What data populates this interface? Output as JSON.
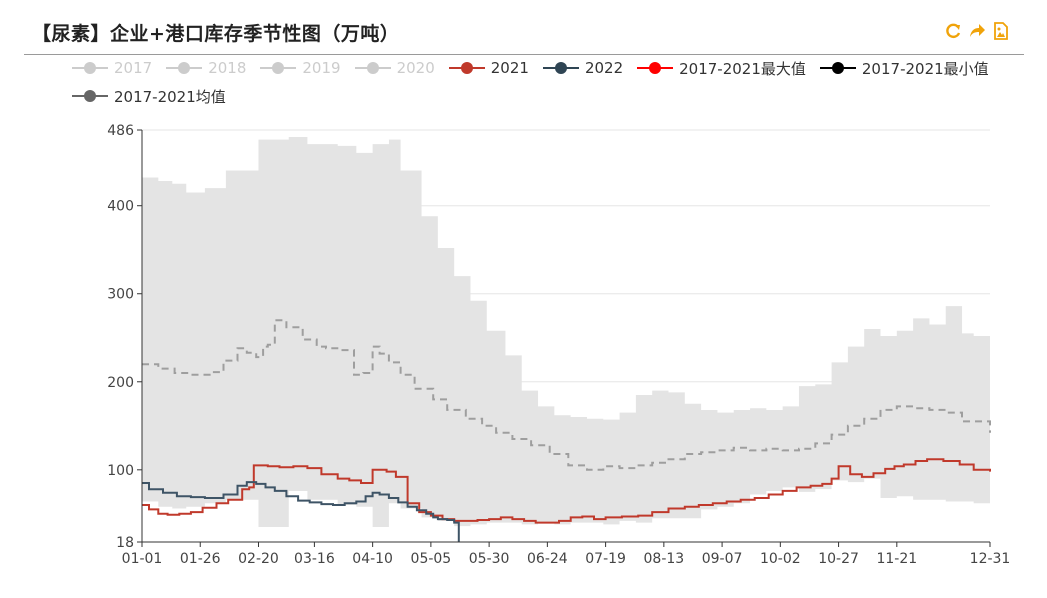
{
  "title": "【尿素】企业+港口库存季节性图（万吨）",
  "tools": [
    "refresh-icon",
    "share-icon",
    "save-image-icon"
  ],
  "colors": {
    "accent": "#f0a30a",
    "band": "#e4e4e4",
    "s2021": "#c0392b",
    "s2022": "#3e5466",
    "max": "#ff0000",
    "min": "#000000",
    "avg": "#9e9e9e",
    "legendOff": "#cccccc"
  },
  "legend": [
    {
      "label": "2017",
      "color": "#cccccc",
      "active": false
    },
    {
      "label": "2018",
      "color": "#cccccc",
      "active": false
    },
    {
      "label": "2019",
      "color": "#cccccc",
      "active": false
    },
    {
      "label": "2020",
      "color": "#cccccc",
      "active": false
    },
    {
      "label": "2021",
      "color": "#c0392b",
      "active": true
    },
    {
      "label": "2022",
      "color": "#2f4554",
      "active": true
    },
    {
      "label": "2017-2021最大值",
      "color": "#ff0000",
      "active": true
    },
    {
      "label": "2017-2021最小值",
      "color": "#000000",
      "active": true
    },
    {
      "label": "2017-2021均值",
      "color": "#666666",
      "active": true
    }
  ],
  "chart_data": {
    "type": "line",
    "title": "【尿素】企业+港口库存季节性图（万吨）",
    "xlabel": "",
    "ylabel": "",
    "ylim": [
      18,
      486
    ],
    "yticks": [
      18,
      100,
      200,
      300,
      400,
      486
    ],
    "xlim": [
      1,
      365
    ],
    "xticks": [
      {
        "day": 1,
        "label": "01-01"
      },
      {
        "day": 26,
        "label": "01-26"
      },
      {
        "day": 51,
        "label": "02-20"
      },
      {
        "day": 75,
        "label": "03-16"
      },
      {
        "day": 100,
        "label": "04-10"
      },
      {
        "day": 125,
        "label": "05-05"
      },
      {
        "day": 150,
        "label": "05-30"
      },
      {
        "day": 175,
        "label": "06-24"
      },
      {
        "day": 200,
        "label": "07-19"
      },
      {
        "day": 225,
        "label": "08-13"
      },
      {
        "day": 250,
        "label": "09-07"
      },
      {
        "day": 275,
        "label": "10-02"
      },
      {
        "day": 300,
        "label": "10-27"
      },
      {
        "day": 325,
        "label": "11-21"
      },
      {
        "day": 365,
        "label": "12-31"
      }
    ],
    "grid": true,
    "legend_position": "top",
    "band": {
      "name_max": "2017-2021最大值",
      "name_min": "2017-2021最小值",
      "x": [
        1,
        8,
        14,
        20,
        28,
        37,
        51,
        64,
        72,
        85,
        93,
        100,
        107,
        112,
        121,
        128,
        135,
        142,
        149,
        157,
        164,
        171,
        178,
        185,
        192,
        199,
        206,
        213,
        220,
        227,
        234,
        241,
        248,
        255,
        262,
        269,
        276,
        283,
        290,
        297,
        304,
        311,
        318,
        325,
        332,
        339,
        346,
        353,
        358,
        365
      ],
      "max": [
        432,
        428,
        425,
        415,
        420,
        440,
        475,
        478,
        470,
        468,
        460,
        470,
        475,
        440,
        388,
        352,
        320,
        292,
        258,
        230,
        190,
        172,
        162,
        160,
        158,
        157,
        165,
        185,
        190,
        188,
        175,
        168,
        165,
        168,
        170,
        168,
        172,
        195,
        197,
        222,
        240,
        260,
        252,
        258,
        272,
        265,
        286,
        255,
        252,
        220
      ],
      "min": [
        64,
        58,
        56,
        58,
        62,
        66,
        35,
        76,
        66,
        60,
        58,
        35,
        62,
        56,
        46,
        42,
        36,
        38,
        40,
        40,
        38,
        40,
        38,
        40,
        40,
        38,
        42,
        40,
        45,
        45,
        45,
        55,
        58,
        62,
        72,
        76,
        80,
        75,
        78,
        88,
        86,
        90,
        68,
        70,
        66,
        66,
        64,
        64,
        62,
        61
      ]
    },
    "series": [
      {
        "name": "2017-2021均值",
        "x": [
          1,
          8,
          15,
          22,
          30,
          36,
          42,
          46,
          50,
          53,
          55,
          58,
          63,
          70,
          76,
          80,
          86,
          92,
          96,
          100,
          103,
          107,
          112,
          118,
          126,
          132,
          140,
          147,
          153,
          160,
          168,
          176,
          184,
          192,
          199,
          206,
          213,
          220,
          227,
          234,
          241,
          248,
          255,
          262,
          269,
          276,
          283,
          290,
          297,
          304,
          311,
          318,
          325,
          332,
          339,
          346,
          353,
          365
        ],
        "y": [
          220,
          215,
          210,
          208,
          211,
          224,
          238,
          233,
          228,
          240,
          242,
          270,
          262,
          248,
          240,
          238,
          236,
          208,
          210,
          240,
          232,
          222,
          208,
          192,
          180,
          168,
          158,
          150,
          142,
          135,
          128,
          118,
          105,
          100,
          104,
          102,
          105,
          108,
          112,
          118,
          120,
          122,
          125,
          122,
          124,
          122,
          124,
          130,
          140,
          150,
          158,
          168,
          172,
          170,
          168,
          165,
          155,
          142
        ],
        "dashed": true
      },
      {
        "name": "2021",
        "x": [
          1,
          4,
          8,
          12,
          17,
          22,
          27,
          33,
          38,
          44,
          47,
          49,
          55,
          60,
          66,
          72,
          78,
          85,
          90,
          95,
          100,
          106,
          110,
          115,
          120,
          125,
          130,
          135,
          140,
          145,
          150,
          155,
          160,
          165,
          170,
          175,
          180,
          185,
          190,
          195,
          200,
          207,
          214,
          220,
          227,
          234,
          240,
          246,
          252,
          258,
          264,
          270,
          276,
          282,
          288,
          293,
          297,
          300,
          305,
          310,
          315,
          320,
          324,
          328,
          333,
          338,
          345,
          352,
          358,
          365
        ],
        "y": [
          60,
          55,
          50,
          49,
          50,
          52,
          57,
          62,
          66,
          78,
          80,
          105,
          104,
          103,
          104,
          102,
          95,
          90,
          88,
          85,
          100,
          98,
          92,
          62,
          52,
          48,
          44,
          42,
          42,
          43,
          44,
          46,
          44,
          42,
          40,
          40,
          42,
          46,
          47,
          44,
          46,
          47,
          48,
          52,
          56,
          58,
          60,
          62,
          64,
          66,
          68,
          72,
          76,
          80,
          82,
          84,
          90,
          104,
          95,
          92,
          96,
          101,
          104,
          106,
          110,
          112,
          110,
          106,
          100,
          98
        ]
      },
      {
        "name": "2022",
        "x": [
          1,
          4,
          10,
          16,
          22,
          28,
          36,
          42,
          46,
          50,
          54,
          58,
          63,
          68,
          73,
          78,
          83,
          88,
          93,
          97,
          100,
          103,
          107,
          111,
          115,
          119,
          123,
          126,
          128,
          130,
          132,
          135,
          137
        ],
        "y": [
          85,
          78,
          74,
          70,
          69,
          68,
          72,
          82,
          86,
          84,
          80,
          76,
          70,
          65,
          63,
          61,
          60,
          62,
          64,
          70,
          74,
          72,
          68,
          63,
          58,
          54,
          50,
          46,
          44,
          44,
          43,
          40,
          18
        ]
      }
    ]
  }
}
